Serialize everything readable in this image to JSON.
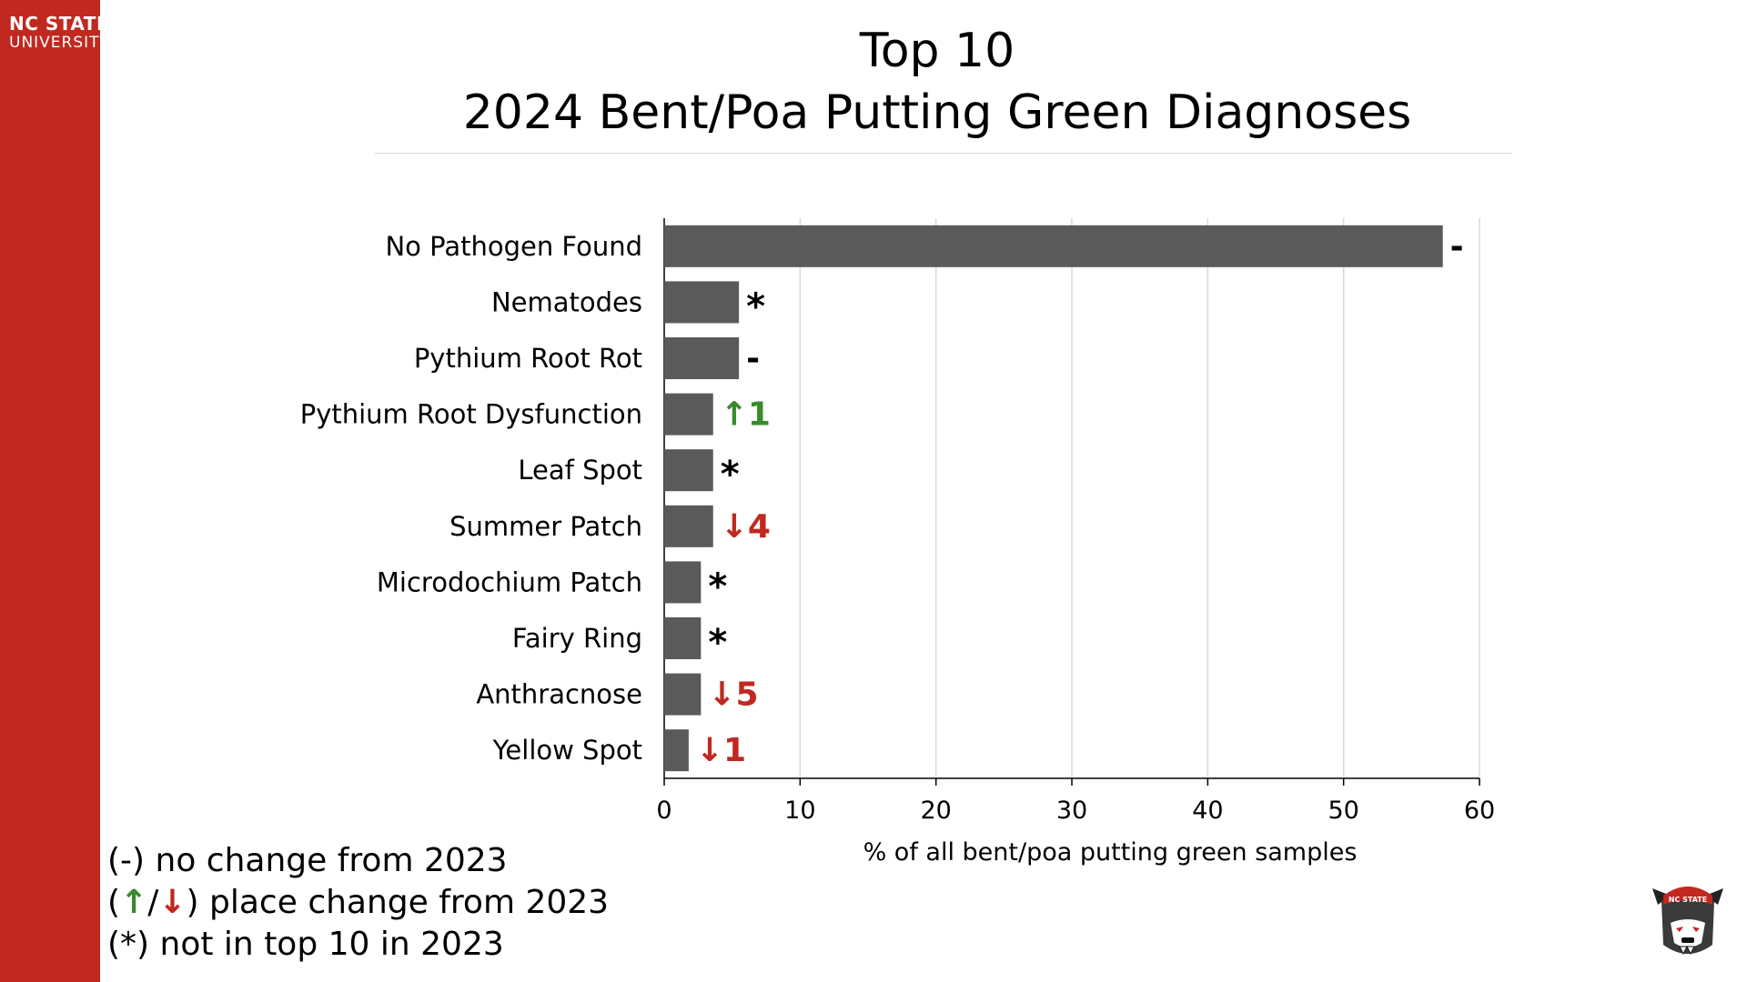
{
  "brand": {
    "line1": "NC STATE",
    "line2": "UNIVERSITY"
  },
  "colors": {
    "sidebar": "#c1281f",
    "bar": "#5a5a5a",
    "up": "#3a8a2e",
    "down": "#c1281f"
  },
  "legend": {
    "no_change": "(-) no change from 2023",
    "place_change_open": "(",
    "up_arrow": "↑",
    "slash": "/",
    "down_arrow": "↓",
    "place_change_close": ") place change from 2023",
    "new_entry": "(*) not in top 10 in 2023"
  },
  "mascot": {
    "label": "NC STATE",
    "icon": "wolf-mascot-icon"
  },
  "chart_data": {
    "type": "bar",
    "orientation": "horizontal",
    "title": "Top 10",
    "subtitle": "2024 Bent/Poa Putting Green Diagnoses",
    "xlabel": "% of all bent/poa putting green samples",
    "ylabel": "",
    "xlim": [
      0,
      60
    ],
    "xticks": [
      0,
      10,
      20,
      30,
      40,
      50,
      60
    ],
    "grid": "vertical",
    "categories": [
      "No Pathogen Found",
      "Nematodes",
      "Pythium Root Rot",
      "Pythium Root Dysfunction",
      "Leaf Spot",
      "Summer Patch",
      "Microdochium Patch",
      "Fairy Ring",
      "Anthracnose",
      "Yellow Spot"
    ],
    "values": [
      57.3,
      5.5,
      5.5,
      3.6,
      3.6,
      3.6,
      2.7,
      2.7,
      2.7,
      1.8
    ],
    "annotations": [
      {
        "symbol": "-",
        "text": "",
        "direction": "none"
      },
      {
        "symbol": "*",
        "text": "",
        "direction": "none"
      },
      {
        "symbol": "-",
        "text": "",
        "direction": "none"
      },
      {
        "symbol": "↑",
        "text": "1",
        "direction": "up"
      },
      {
        "symbol": "*",
        "text": "",
        "direction": "none"
      },
      {
        "symbol": "↓",
        "text": "4",
        "direction": "down"
      },
      {
        "symbol": "*",
        "text": "",
        "direction": "none"
      },
      {
        "symbol": "*",
        "text": "",
        "direction": "none"
      },
      {
        "symbol": "↓",
        "text": "5",
        "direction": "down"
      },
      {
        "symbol": "↓",
        "text": "1",
        "direction": "down"
      }
    ]
  }
}
